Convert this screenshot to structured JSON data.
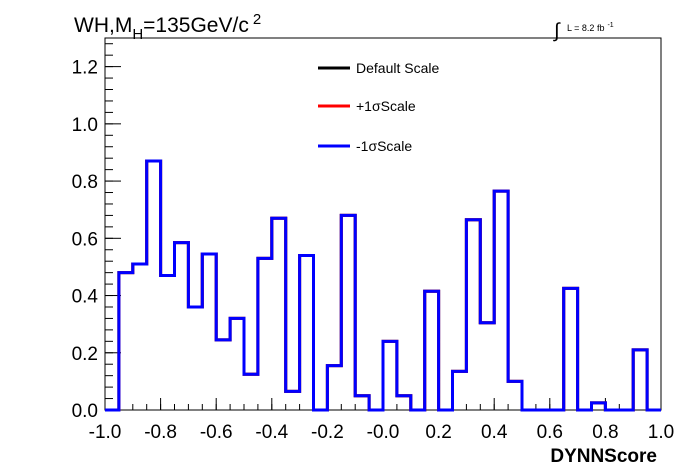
{
  "chart_data": {
    "type": "step-histogram",
    "title": {
      "base": "WH,M",
      "sub": "H",
      "rest": "=135GeV/c",
      "sup": "2"
    },
    "luminosity": {
      "symbol": "∫",
      "text": "L = 8.2 fb",
      "sup": "-1"
    },
    "xlabel": "DYNNScore",
    "ylabel": "",
    "xlim": [
      -1.0,
      1.0
    ],
    "ylim": [
      0,
      1.3
    ],
    "x_ticks": [
      -1.0,
      -0.8,
      -0.6,
      -0.4,
      -0.2,
      0.0,
      0.2,
      0.4,
      0.6,
      0.8,
      1.0
    ],
    "x_tick_labels": [
      "-1.0",
      "-0.8",
      "-0.6",
      "-0.4",
      "-0.2",
      "-0.0",
      "0.2",
      "0.4",
      "0.6",
      "0.8",
      "1.0"
    ],
    "y_ticks": [
      0.0,
      0.2,
      0.4,
      0.6,
      0.8,
      1.0,
      1.2
    ],
    "y_tick_labels": [
      "0.0",
      "0.2",
      "0.4",
      "0.6",
      "0.8",
      "1.0",
      "1.2"
    ],
    "bin_edges": [
      -1.0,
      -0.95,
      -0.9,
      -0.85,
      -0.8,
      -0.75,
      -0.7,
      -0.65,
      -0.6,
      -0.55,
      -0.5,
      -0.45,
      -0.4,
      -0.35,
      -0.3,
      -0.25,
      -0.2,
      -0.15,
      -0.1,
      -0.05,
      0.0,
      0.05,
      0.1,
      0.15,
      0.2,
      0.25,
      0.3,
      0.35,
      0.4,
      0.45,
      0.5,
      0.55,
      0.6,
      0.65,
      0.7,
      0.75,
      0.8,
      0.85,
      0.9,
      0.95,
      1.0
    ],
    "series": [
      {
        "name": "Default Scale",
        "color": "#000000",
        "values": [
          0.0,
          0.48,
          0.51,
          0.87,
          0.47,
          0.585,
          0.36,
          0.545,
          0.245,
          0.32,
          0.125,
          0.53,
          0.67,
          0.065,
          0.54,
          0.0,
          0.155,
          0.68,
          0.05,
          0.0,
          0.24,
          0.05,
          0.0,
          0.415,
          0.0,
          0.135,
          0.665,
          0.305,
          0.765,
          0.1,
          0.0,
          0.0,
          0.0,
          0.425,
          0.0,
          0.025,
          0.0,
          0.0,
          0.21,
          0.0
        ]
      },
      {
        "name": "+1σScale",
        "color": "#ff0000",
        "values": [
          0.0,
          0.48,
          0.51,
          0.87,
          0.47,
          0.585,
          0.36,
          0.545,
          0.245,
          0.32,
          0.125,
          0.53,
          0.67,
          0.065,
          0.54,
          0.0,
          0.155,
          0.68,
          0.05,
          0.0,
          0.24,
          0.05,
          0.0,
          0.415,
          0.0,
          0.135,
          0.665,
          0.305,
          0.765,
          0.1,
          0.0,
          0.0,
          0.0,
          0.425,
          0.0,
          0.025,
          0.0,
          0.0,
          0.21,
          0.0
        ]
      },
      {
        "name": "-1σScale",
        "color": "#0000ff",
        "values": [
          0.0,
          0.48,
          0.51,
          0.87,
          0.47,
          0.585,
          0.36,
          0.545,
          0.245,
          0.32,
          0.125,
          0.53,
          0.67,
          0.065,
          0.54,
          0.0,
          0.155,
          0.68,
          0.05,
          0.0,
          0.24,
          0.05,
          0.0,
          0.415,
          0.0,
          0.135,
          0.665,
          0.305,
          0.765,
          0.1,
          0.0,
          0.0,
          0.0,
          0.425,
          0.0,
          0.025,
          0.0,
          0.0,
          0.21,
          0.0
        ]
      }
    ],
    "legend_position": "top-center",
    "grid": false
  }
}
